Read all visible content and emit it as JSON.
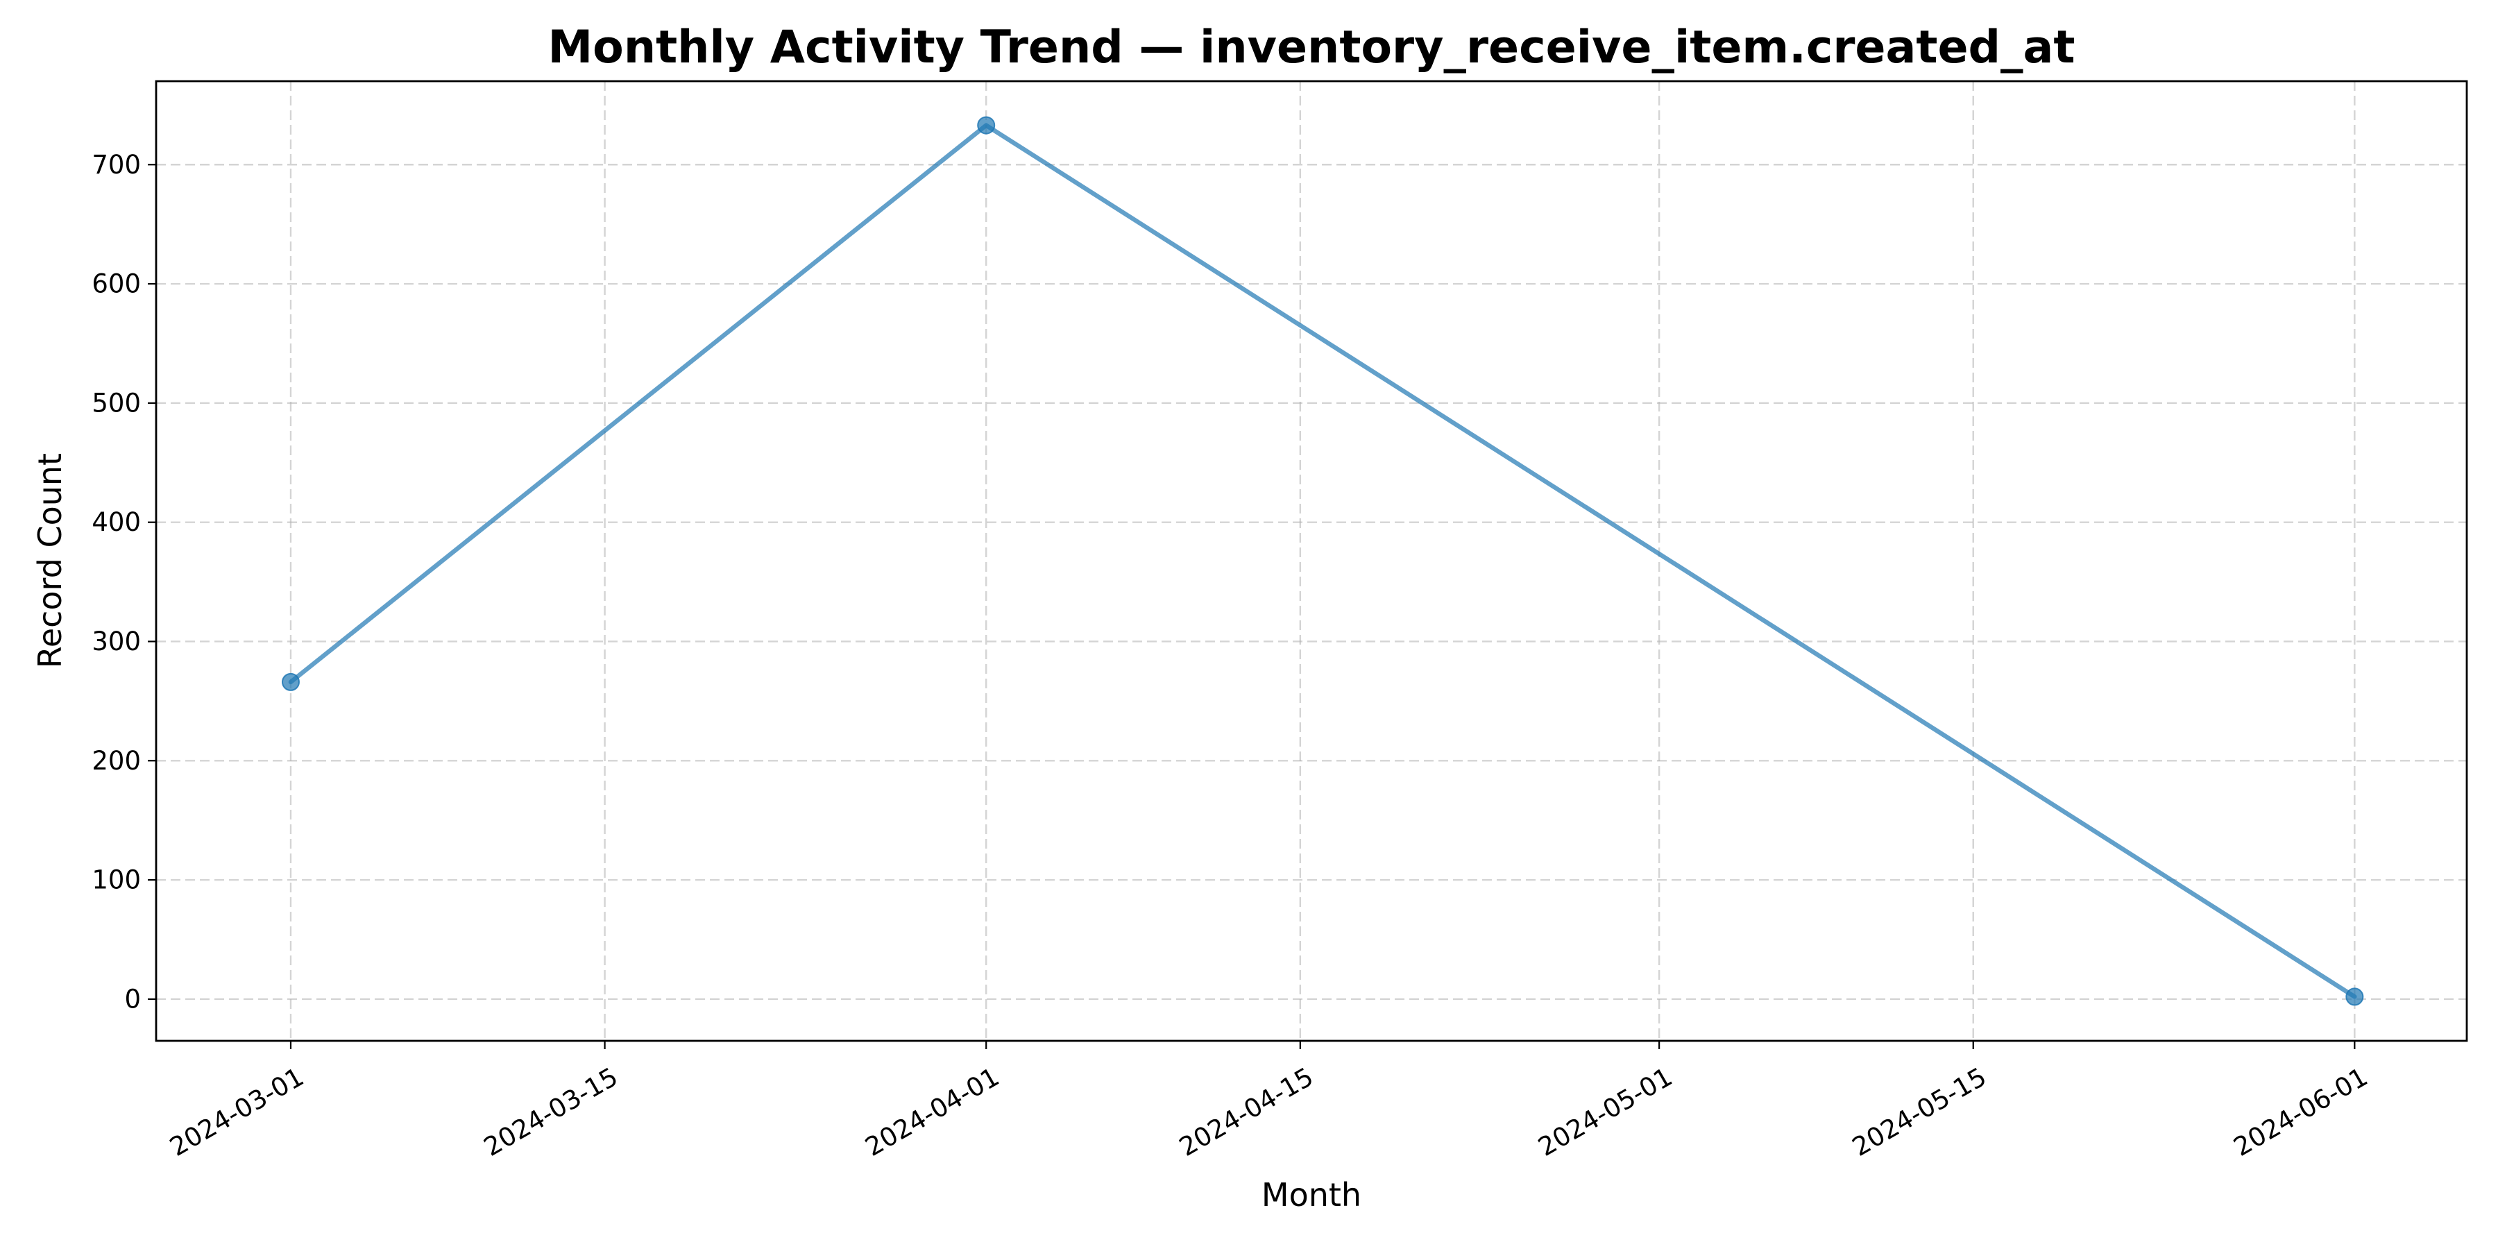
{
  "chart_data": {
    "type": "line",
    "title": "Monthly Activity Trend — inventory_receive_item.created_at",
    "xlabel": "Month",
    "ylabel": "Record Count",
    "x_type": "date",
    "x": [
      "2024-03-01",
      "2024-04-01",
      "2024-06-01"
    ],
    "series": [
      {
        "values": [
          266,
          733,
          2
        ],
        "color": "#1f77b4",
        "marker": "circle"
      }
    ],
    "xlim": [
      "2024-02-24",
      "2024-06-06"
    ],
    "ylim": [
      -35,
      770
    ],
    "x_ticks": [
      "2024-03-01",
      "2024-03-15",
      "2024-04-01",
      "2024-04-15",
      "2024-05-01",
      "2024-05-15",
      "2024-06-01"
    ],
    "y_ticks": [
      0,
      100,
      200,
      300,
      400,
      500,
      600,
      700
    ],
    "grid": true,
    "legend": "none"
  }
}
